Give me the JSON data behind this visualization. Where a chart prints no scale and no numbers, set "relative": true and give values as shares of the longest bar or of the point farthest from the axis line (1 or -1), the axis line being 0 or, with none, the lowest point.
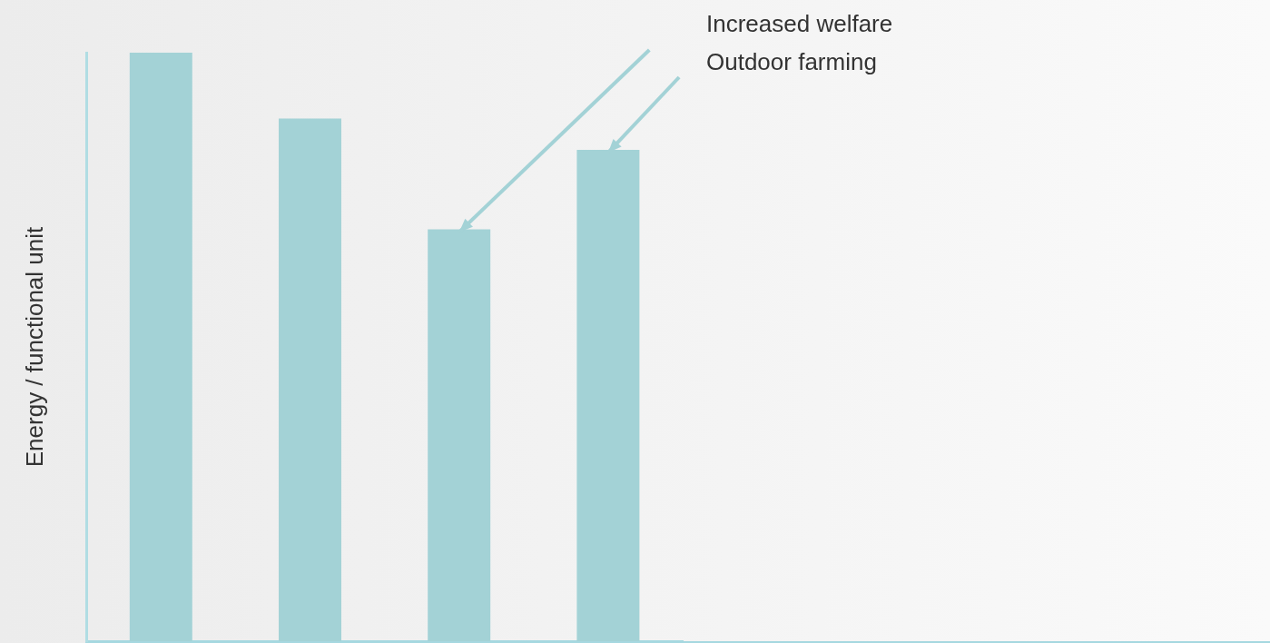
{
  "chart_data": {
    "type": "bar",
    "relative": true,
    "ylabel": "Energy / functional unit",
    "categories": [
      null,
      null,
      null,
      null
    ],
    "values": [
      1,
      0.888,
      0.7,
      0.835
    ],
    "color": "#a3d2d6",
    "annotations": [
      "Increased welfare",
      "Outdoor farming"
    ],
    "grid": false,
    "legend": false
  }
}
